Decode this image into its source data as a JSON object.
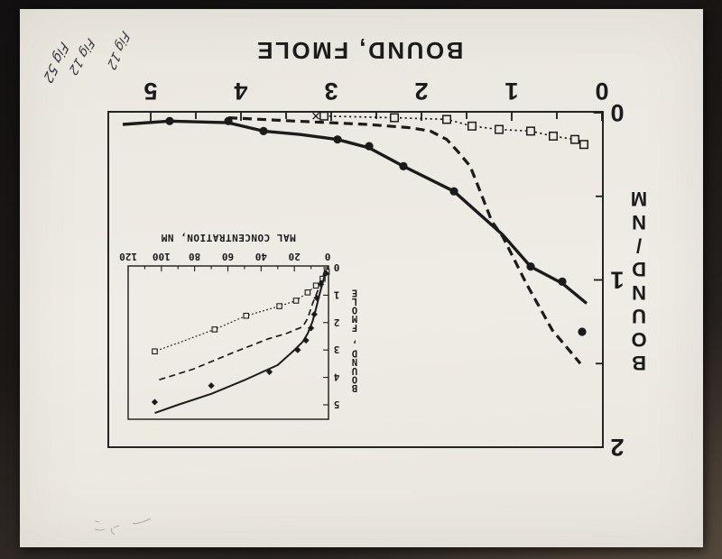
{
  "figure": {
    "handwriting": [
      "Fig 52",
      "Fig 12",
      "Fig 12"
    ]
  },
  "chart_data": [
    {
      "id": "main-scatchard-plot",
      "type": "line",
      "title": "",
      "xlabel": "BOUND, FMOLE",
      "ylabel": "BOUND/NM",
      "xlim": [
        0,
        5.47
      ],
      "ylim": [
        0,
        2
      ],
      "xticks": [
        0,
        1,
        2,
        3,
        4,
        5
      ],
      "xtick_minor_step": 0.5,
      "yticks": [
        0,
        1,
        2
      ],
      "ytick_minor_step": 0.5,
      "grid": false,
      "legend": false,
      "orientation_note": "page scanned upside down",
      "series": [
        {
          "name": "open-squares-dotted",
          "line_style": "dotted",
          "marker": "square",
          "line": [
            [
              3.08,
              0.02
            ],
            [
              2.3,
              0.03
            ],
            [
              1.72,
              0.04
            ],
            [
              1.44,
              0.08
            ],
            [
              1.14,
              0.1
            ],
            [
              0.79,
              0.11
            ],
            [
              0.54,
              0.14
            ],
            [
              0.3,
              0.16
            ],
            [
              0.2,
              0.19
            ]
          ],
          "points": [
            [
              3.08,
              0.02
            ],
            [
              2.3,
              0.03
            ],
            [
              1.72,
              0.04
            ],
            [
              1.44,
              0.08
            ],
            [
              1.14,
              0.1
            ],
            [
              0.79,
              0.11
            ],
            [
              0.54,
              0.14
            ],
            [
              0.3,
              0.16
            ],
            [
              0.2,
              0.19
            ]
          ],
          "x_marker": [
            3.17,
            0.02
          ]
        },
        {
          "name": "dashed-curve",
          "line_style": "dashed",
          "marker": "none",
          "line": [
            [
              4.14,
              0.03
            ],
            [
              3.4,
              0.05
            ],
            [
              2.6,
              0.07
            ],
            [
              2.12,
              0.09
            ],
            [
              1.9,
              0.11
            ],
            [
              1.72,
              0.16
            ],
            [
              1.6,
              0.23
            ],
            [
              1.46,
              0.32
            ],
            [
              1.35,
              0.47
            ],
            [
              1.22,
              0.65
            ],
            [
              1.1,
              0.74
            ],
            [
              0.84,
              1.02
            ],
            [
              0.55,
              1.3
            ],
            [
              0.24,
              1.5
            ]
          ]
        },
        {
          "name": "filled-circles-solid",
          "line_style": "solid",
          "marker": "circle",
          "line": [
            [
              5.31,
              0.07
            ],
            [
              4.79,
              0.05
            ],
            [
              4.14,
              0.06
            ],
            [
              3.75,
              0.11
            ],
            [
              3.35,
              0.13
            ],
            [
              2.93,
              0.16
            ],
            [
              2.58,
              0.21
            ],
            [
              2.2,
              0.32
            ],
            [
              1.64,
              0.47
            ],
            [
              1.1,
              0.73
            ],
            [
              0.79,
              0.92
            ],
            [
              0.44,
              1.02
            ],
            [
              0.17,
              1.14
            ]
          ],
          "points": [
            [
              4.79,
              0.05
            ],
            [
              4.14,
              0.05
            ],
            [
              3.75,
              0.11
            ],
            [
              2.93,
              0.16
            ],
            [
              2.58,
              0.2
            ],
            [
              2.2,
              0.32
            ],
            [
              1.64,
              0.47
            ],
            [
              0.79,
              0.92
            ],
            [
              0.44,
              1.01
            ],
            [
              0.22,
              1.31
            ]
          ]
        }
      ]
    },
    {
      "id": "inset-binding-plot",
      "type": "line",
      "title": "",
      "xlabel": "MAL CONCENTRATION, NM",
      "ylabel": "BOUND, FMOLE",
      "xlim": [
        0,
        120
      ],
      "ylim": [
        0,
        5.6
      ],
      "xticks": [
        0,
        20,
        40,
        60,
        80,
        100,
        120
      ],
      "xtick_minor_step": 10,
      "yticks": [
        0,
        1,
        2,
        3,
        4,
        5
      ],
      "grid": false,
      "legend": false,
      "series": [
        {
          "name": "open-squares-dotted",
          "line_style": "dotted",
          "marker": "square",
          "line": [
            [
              0.5,
              0.15
            ],
            [
              3,
              0.4
            ],
            [
              7,
              0.65
            ],
            [
              12,
              0.9
            ],
            [
              19,
              1.2
            ],
            [
              29,
              1.4
            ],
            [
              49,
              1.75
            ],
            [
              68,
              2.25
            ],
            [
              88,
              2.7
            ],
            [
              104,
              3.05
            ]
          ],
          "points": [
            [
              0.5,
              0.15
            ],
            [
              3,
              0.4
            ],
            [
              7,
              0.65
            ],
            [
              12,
              0.9
            ],
            [
              19,
              1.2
            ],
            [
              29,
              1.4
            ],
            [
              49,
              1.75
            ],
            [
              68,
              2.25
            ],
            [
              104,
              3.05
            ]
          ]
        },
        {
          "name": "dashed-curve",
          "line_style": "dashed",
          "marker": "none",
          "line": [
            [
              1.5,
              0.1
            ],
            [
              5,
              0.7
            ],
            [
              9,
              1.3
            ],
            [
              12,
              1.85
            ],
            [
              15,
              2.15
            ],
            [
              25,
              2.4
            ],
            [
              36,
              2.6
            ],
            [
              57,
              3.1
            ],
            [
              81,
              3.7
            ],
            [
              102,
              4.1
            ]
          ]
        },
        {
          "name": "filled-diamonds-solid",
          "line_style": "solid",
          "marker": "diamond",
          "line": [
            [
              1,
              0.1
            ],
            [
              3,
              0.55
            ],
            [
              5,
              1.0
            ],
            [
              7,
              1.5
            ],
            [
              9,
              1.95
            ],
            [
              12,
              2.4
            ],
            [
              15,
              2.7
            ],
            [
              20,
              3.0
            ],
            [
              30,
              3.55
            ],
            [
              50,
              4.1
            ],
            [
              70,
              4.6
            ],
            [
              90,
              5.0
            ],
            [
              104,
              5.3
            ]
          ],
          "points": [
            [
              1,
              0.2
            ],
            [
              4,
              0.6
            ],
            [
              6.5,
              1.1
            ],
            [
              8,
              1.7
            ],
            [
              10,
              2.2
            ],
            [
              13,
              2.65
            ],
            [
              18,
              3.0
            ],
            [
              35,
              3.8
            ],
            [
              70,
              4.3
            ],
            [
              104,
              4.9
            ]
          ]
        }
      ]
    }
  ]
}
